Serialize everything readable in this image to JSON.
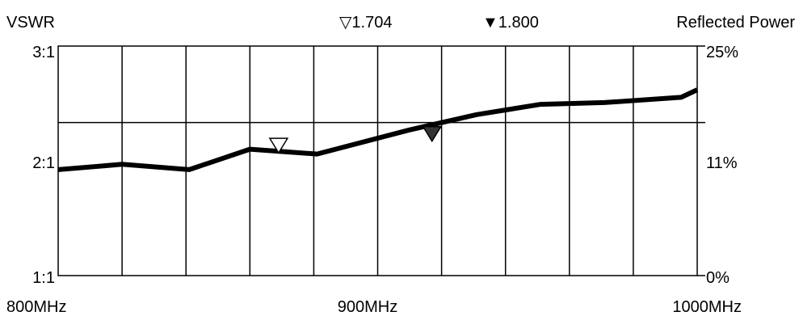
{
  "chart_data": {
    "type": "line",
    "left_axis_title": "VSWR",
    "right_axis_title": "Reflected Power",
    "x_unit": "MHz",
    "xlim": [
      800,
      1000
    ],
    "x_tick_labels": [
      "800MHz",
      "900MHz",
      "1000MHz"
    ],
    "y_tick_labels_left": [
      "3:1",
      "2:1",
      "1:1"
    ],
    "y_tick_labels_right": [
      "25%",
      "11%",
      "0%"
    ],
    "y_scale": "reflection-coefficient (VSWR)",
    "ylim": [
      1,
      3
    ],
    "grid": true,
    "series": [
      {
        "x": [
          800,
          820,
          841,
          860,
          881,
          910,
          931,
          951,
          971,
          995,
          1000
        ],
        "y": [
          1.6,
          1.64,
          1.6,
          1.76,
          1.72,
          1.93,
          2.08,
          2.19,
          2.21,
          2.27,
          2.36
        ]
      }
    ],
    "markers": [
      {
        "symbol": "open-triangle",
        "label": "1.704",
        "x": 869,
        "y": 1.704
      },
      {
        "symbol": "filled-triangle",
        "label": "1.800",
        "x": 917,
        "y": 1.8
      }
    ]
  }
}
